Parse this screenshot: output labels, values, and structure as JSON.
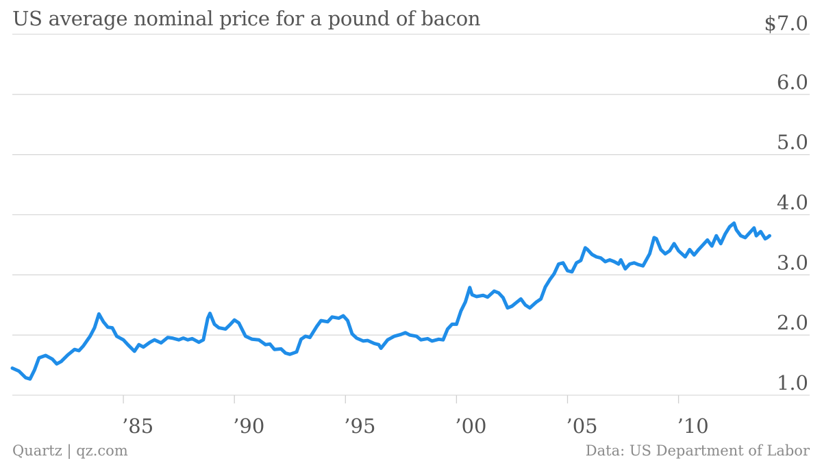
{
  "header": {
    "title": "US average nominal price for a pound of bacon"
  },
  "footer": {
    "credit": "Quartz | qz.com",
    "source": "Data: US Department of Labor"
  },
  "chart_data": {
    "type": "line",
    "title": "US average nominal price for a pound of bacon",
    "xlabel": "",
    "ylabel": "",
    "xlim": [
      1980.0,
      2014.3
    ],
    "ylim": [
      1.0,
      7.0
    ],
    "y_ticks": [
      {
        "value": 1.0,
        "label": "1.0"
      },
      {
        "value": 2.0,
        "label": "2.0"
      },
      {
        "value": 3.0,
        "label": "3.0"
      },
      {
        "value": 4.0,
        "label": "4.0"
      },
      {
        "value": 5.0,
        "label": "5.0"
      },
      {
        "value": 6.0,
        "label": "6.0"
      },
      {
        "value": 7.0,
        "label": "$7.0"
      }
    ],
    "x_ticks": [
      {
        "value": 1985,
        "label": "’85"
      },
      {
        "value": 1990,
        "label": "’90"
      },
      {
        "value": 1995,
        "label": "’95"
      },
      {
        "value": 2000,
        "label": "’00"
      },
      {
        "value": 2005,
        "label": "’05"
      },
      {
        "value": 2010,
        "label": "’10"
      }
    ],
    "grid": true,
    "line_color": "#1f8de8",
    "series": [
      {
        "points": [
          [
            1980.0,
            1.45
          ],
          [
            1980.3,
            1.4
          ],
          [
            1980.6,
            1.29
          ],
          [
            1980.8,
            1.27
          ],
          [
            1981.0,
            1.42
          ],
          [
            1981.2,
            1.62
          ],
          [
            1981.5,
            1.66
          ],
          [
            1981.8,
            1.6
          ],
          [
            1982.0,
            1.52
          ],
          [
            1982.2,
            1.56
          ],
          [
            1982.5,
            1.67
          ],
          [
            1982.8,
            1.76
          ],
          [
            1983.0,
            1.74
          ],
          [
            1983.2,
            1.82
          ],
          [
            1983.5,
            1.98
          ],
          [
            1983.7,
            2.12
          ],
          [
            1983.9,
            2.35
          ],
          [
            1984.1,
            2.22
          ],
          [
            1984.3,
            2.13
          ],
          [
            1984.5,
            2.12
          ],
          [
            1984.7,
            1.98
          ],
          [
            1985.0,
            1.92
          ],
          [
            1985.2,
            1.84
          ],
          [
            1985.5,
            1.73
          ],
          [
            1985.7,
            1.84
          ],
          [
            1985.9,
            1.8
          ],
          [
            1986.2,
            1.88
          ],
          [
            1986.4,
            1.92
          ],
          [
            1986.7,
            1.87
          ],
          [
            1987.0,
            1.96
          ],
          [
            1987.2,
            1.95
          ],
          [
            1987.5,
            1.92
          ],
          [
            1987.7,
            1.95
          ],
          [
            1987.9,
            1.92
          ],
          [
            1988.1,
            1.94
          ],
          [
            1988.4,
            1.88
          ],
          [
            1988.6,
            1.92
          ],
          [
            1988.8,
            2.28
          ],
          [
            1988.9,
            2.36
          ],
          [
            1989.1,
            2.18
          ],
          [
            1989.3,
            2.12
          ],
          [
            1989.6,
            2.1
          ],
          [
            1989.8,
            2.17
          ],
          [
            1990.0,
            2.25
          ],
          [
            1990.2,
            2.2
          ],
          [
            1990.5,
            1.98
          ],
          [
            1990.8,
            1.93
          ],
          [
            1991.1,
            1.92
          ],
          [
            1991.4,
            1.84
          ],
          [
            1991.6,
            1.85
          ],
          [
            1991.8,
            1.76
          ],
          [
            1992.1,
            1.77
          ],
          [
            1992.3,
            1.7
          ],
          [
            1992.5,
            1.68
          ],
          [
            1992.8,
            1.72
          ],
          [
            1993.0,
            1.93
          ],
          [
            1993.2,
            1.98
          ],
          [
            1993.4,
            1.96
          ],
          [
            1993.7,
            2.14
          ],
          [
            1993.9,
            2.24
          ],
          [
            1994.2,
            2.22
          ],
          [
            1994.4,
            2.3
          ],
          [
            1994.7,
            2.28
          ],
          [
            1994.9,
            2.32
          ],
          [
            1995.1,
            2.24
          ],
          [
            1995.3,
            2.02
          ],
          [
            1995.5,
            1.95
          ],
          [
            1995.8,
            1.9
          ],
          [
            1996.0,
            1.91
          ],
          [
            1996.3,
            1.86
          ],
          [
            1996.5,
            1.84
          ],
          [
            1996.6,
            1.78
          ],
          [
            1996.9,
            1.92
          ],
          [
            1997.2,
            1.98
          ],
          [
            1997.5,
            2.01
          ],
          [
            1997.7,
            2.04
          ],
          [
            1997.9,
            2.0
          ],
          [
            1998.2,
            1.98
          ],
          [
            1998.4,
            1.92
          ],
          [
            1998.7,
            1.94
          ],
          [
            1998.9,
            1.9
          ],
          [
            1999.2,
            1.93
          ],
          [
            1999.4,
            1.92
          ],
          [
            1999.6,
            2.1
          ],
          [
            1999.8,
            2.18
          ],
          [
            2000.0,
            2.18
          ],
          [
            2000.2,
            2.4
          ],
          [
            2000.4,
            2.55
          ],
          [
            2000.6,
            2.79
          ],
          [
            2000.7,
            2.67
          ],
          [
            2000.9,
            2.64
          ],
          [
            2001.2,
            2.66
          ],
          [
            2001.4,
            2.63
          ],
          [
            2001.7,
            2.73
          ],
          [
            2001.9,
            2.7
          ],
          [
            2002.1,
            2.62
          ],
          [
            2002.3,
            2.45
          ],
          [
            2002.5,
            2.48
          ],
          [
            2002.7,
            2.54
          ],
          [
            2002.9,
            2.6
          ],
          [
            2003.1,
            2.5
          ],
          [
            2003.3,
            2.45
          ],
          [
            2003.6,
            2.55
          ],
          [
            2003.8,
            2.6
          ],
          [
            2004.0,
            2.8
          ],
          [
            2004.2,
            2.92
          ],
          [
            2004.4,
            3.02
          ],
          [
            2004.6,
            3.18
          ],
          [
            2004.8,
            3.2
          ],
          [
            2005.0,
            3.07
          ],
          [
            2005.2,
            3.05
          ],
          [
            2005.4,
            3.2
          ],
          [
            2005.6,
            3.24
          ],
          [
            2005.8,
            3.45
          ],
          [
            2005.9,
            3.42
          ],
          [
            2006.1,
            3.34
          ],
          [
            2006.3,
            3.3
          ],
          [
            2006.5,
            3.28
          ],
          [
            2006.7,
            3.22
          ],
          [
            2006.9,
            3.25
          ],
          [
            2007.1,
            3.22
          ],
          [
            2007.3,
            3.18
          ],
          [
            2007.4,
            3.25
          ],
          [
            2007.6,
            3.1
          ],
          [
            2007.8,
            3.18
          ],
          [
            2008.0,
            3.2
          ],
          [
            2008.2,
            3.17
          ],
          [
            2008.4,
            3.15
          ],
          [
            2008.7,
            3.35
          ],
          [
            2008.9,
            3.62
          ],
          [
            2009.0,
            3.6
          ],
          [
            2009.2,
            3.42
          ],
          [
            2009.4,
            3.35
          ],
          [
            2009.6,
            3.4
          ],
          [
            2009.8,
            3.52
          ],
          [
            2010.0,
            3.4
          ],
          [
            2010.3,
            3.3
          ],
          [
            2010.5,
            3.42
          ],
          [
            2010.7,
            3.33
          ],
          [
            2010.9,
            3.42
          ],
          [
            2011.1,
            3.5
          ],
          [
            2011.3,
            3.58
          ],
          [
            2011.5,
            3.48
          ],
          [
            2011.7,
            3.65
          ],
          [
            2011.9,
            3.52
          ],
          [
            2012.1,
            3.68
          ],
          [
            2012.3,
            3.8
          ],
          [
            2012.5,
            3.86
          ],
          [
            2012.6,
            3.75
          ],
          [
            2012.8,
            3.65
          ],
          [
            2013.0,
            3.62
          ],
          [
            2013.2,
            3.7
          ],
          [
            2013.4,
            3.78
          ],
          [
            2013.5,
            3.65
          ],
          [
            2013.7,
            3.72
          ],
          [
            2013.9,
            3.6
          ],
          [
            2014.0,
            3.62
          ],
          [
            2014.1,
            3.65
          ]
        ]
      }
    ]
  }
}
